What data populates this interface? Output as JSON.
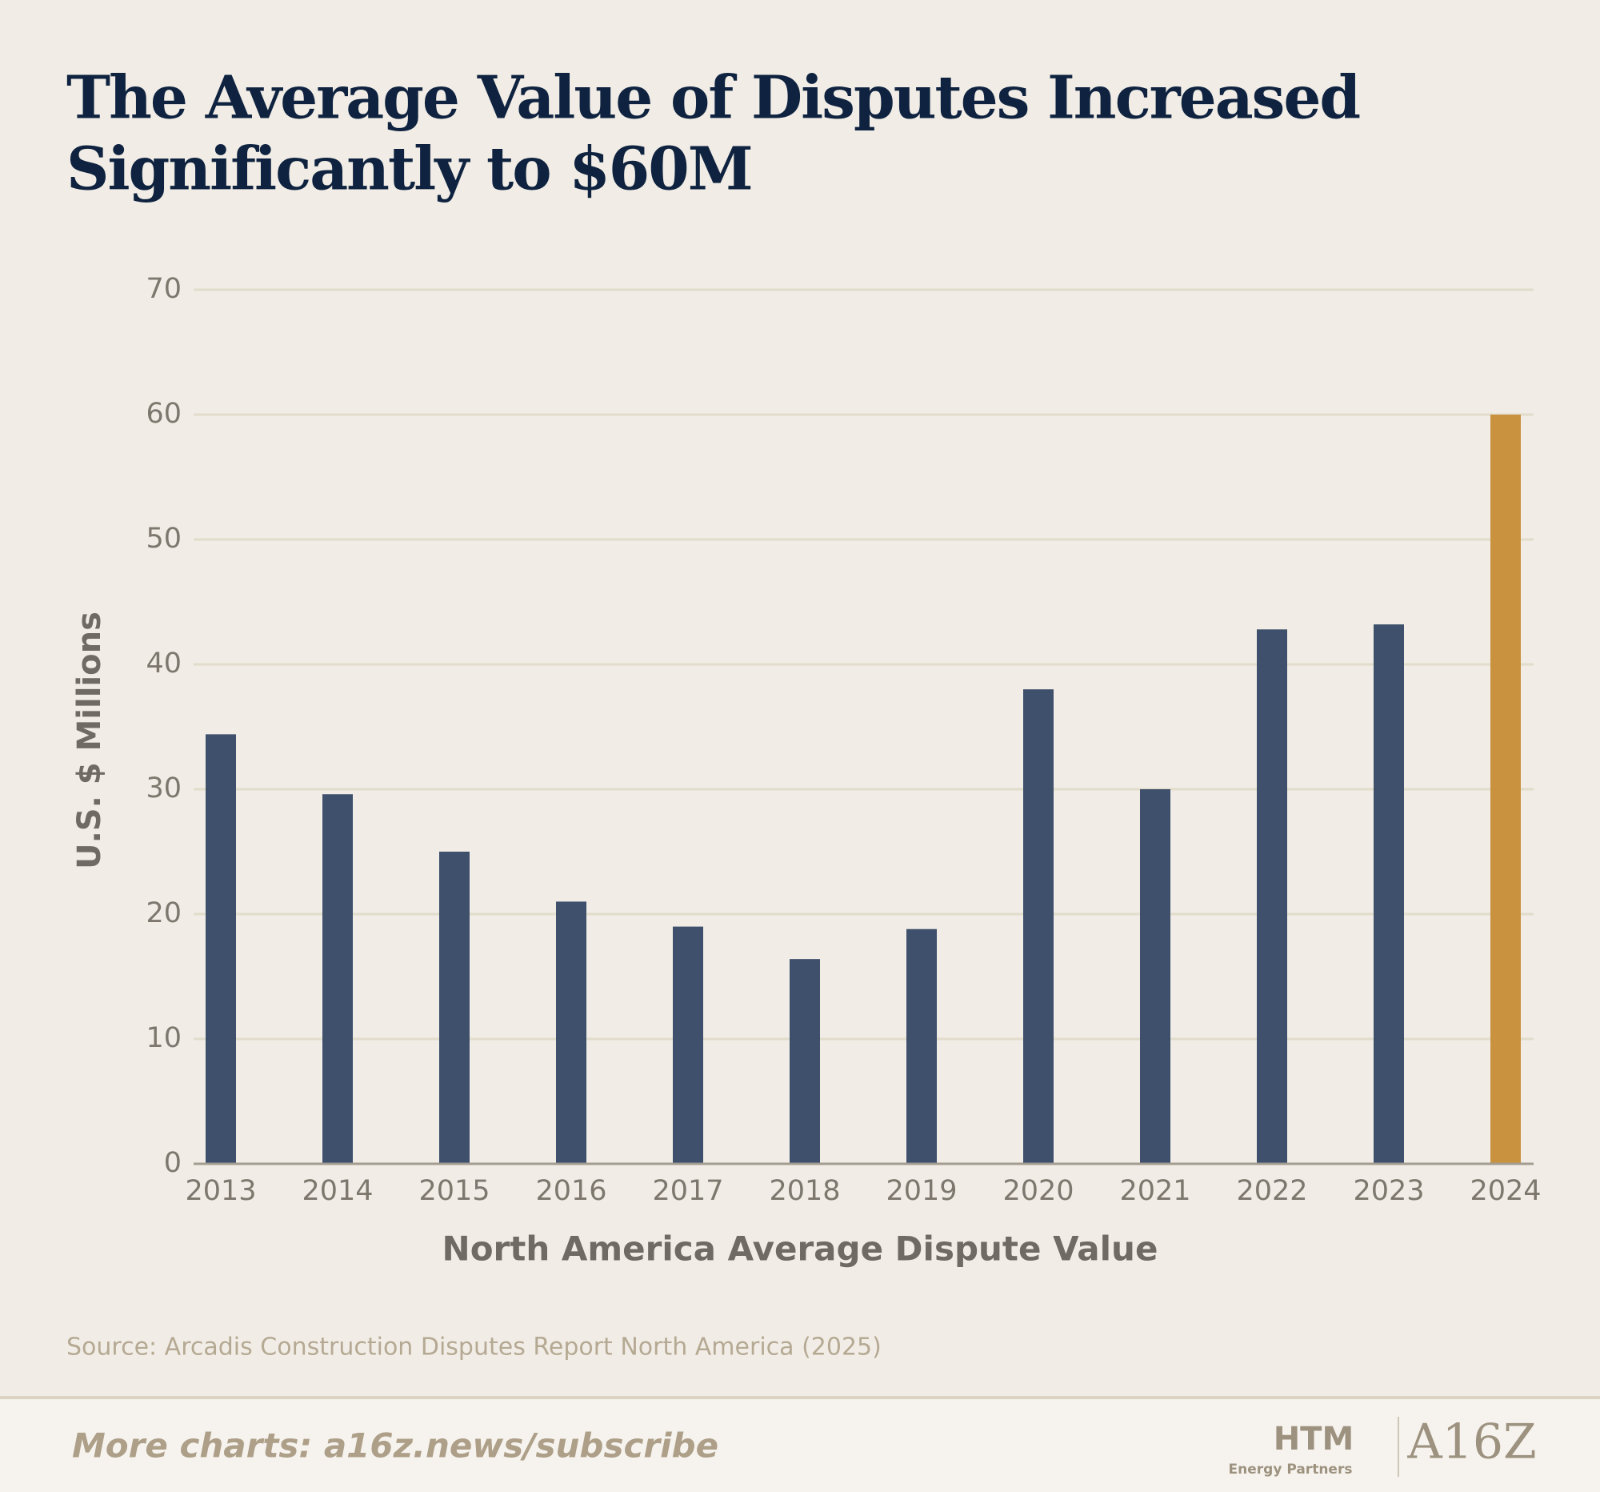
{
  "chart_data": {
    "type": "bar",
    "title": "The Average Value of Disputes Increased",
    "subtitle": "Significantly to $60M",
    "y_label": "U.S. $ Millions",
    "x_label": "North America Average Dispute Value",
    "source": "Source: Arcadis Construction Disputes Report North America (2025)",
    "categories": [
      "2013",
      "2014",
      "2015",
      "2016",
      "2017",
      "2018",
      "2019",
      "2020",
      "2021",
      "2022",
      "2023",
      "2024"
    ],
    "values": [
      34.4,
      29.6,
      25,
      21,
      19,
      16.4,
      18.8,
      38,
      30,
      42.8,
      43.2,
      60
    ],
    "colors": [
      "#3e506b",
      "#3e506b",
      "#3e506b",
      "#3e506b",
      "#3e506b",
      "#3e506b",
      "#3e506b",
      "#3e506b",
      "#3e506b",
      "#3e506b",
      "#3e506b",
      "#c8923f"
    ],
    "ylim": [
      0,
      70
    ],
    "yticks": [
      0,
      10,
      20,
      30,
      40,
      50,
      60,
      70
    ],
    "grid": true
  },
  "footer": {
    "link": "More charts: a16z.news/subscribe",
    "logo1": "HTM",
    "logo1_sub": "Energy Partners",
    "logo2": "A16Z"
  }
}
